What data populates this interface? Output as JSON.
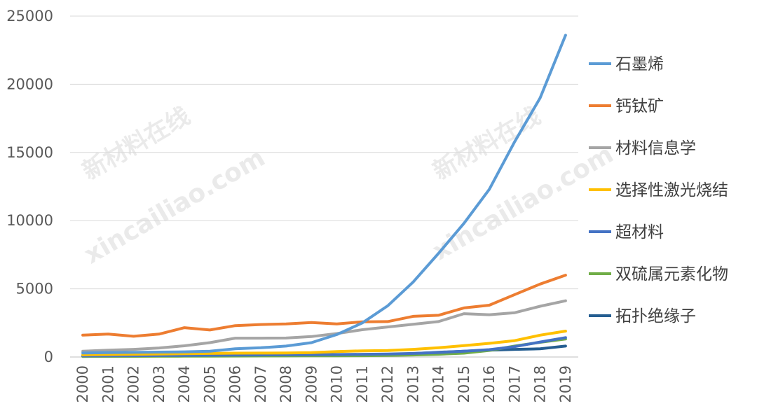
{
  "watermark": [
    "新材料在线",
    "xincailiao.com"
  ],
  "chart_data": {
    "type": "line",
    "x": [
      "2000",
      "2001",
      "2002",
      "2003",
      "2004",
      "2005",
      "2006",
      "2007",
      "2008",
      "2009",
      "2010",
      "2011",
      "2012",
      "2013",
      "2014",
      "2015",
      "2016",
      "2017",
      "2018",
      "2019"
    ],
    "ylim": [
      0,
      25000
    ],
    "yticks": [
      "0",
      "5000",
      "10000",
      "15000",
      "20000",
      "25000"
    ],
    "grid": true,
    "legend_position": "right",
    "series": [
      {
        "name": "石墨烯",
        "color": "#5b9bd5",
        "values": [
          300,
          320,
          340,
          360,
          380,
          420,
          600,
          680,
          800,
          1050,
          1650,
          2500,
          3750,
          5500,
          7600,
          9800,
          12300,
          15800,
          19000,
          23600
        ]
      },
      {
        "name": "钙钛矿",
        "color": "#ed7d31",
        "values": [
          1600,
          1680,
          1520,
          1680,
          2150,
          1980,
          2300,
          2380,
          2430,
          2530,
          2430,
          2580,
          2600,
          2980,
          3060,
          3600,
          3800,
          4580,
          5350,
          6000
        ]
      },
      {
        "name": "材料信息学",
        "color": "#a5a5a5",
        "values": [
          420,
          500,
          560,
          660,
          820,
          1050,
          1380,
          1380,
          1390,
          1500,
          1720,
          2000,
          2200,
          2400,
          2600,
          3180,
          3100,
          3250,
          3720,
          4120
        ]
      },
      {
        "name": "选择性激光烧结",
        "color": "#ffc000",
        "values": [
          160,
          180,
          200,
          220,
          240,
          260,
          280,
          290,
          300,
          320,
          400,
          450,
          470,
          560,
          680,
          830,
          1000,
          1200,
          1600,
          1900
        ]
      },
      {
        "name": "超材料",
        "color": "#4472c4",
        "values": [
          80,
          90,
          100,
          110,
          120,
          130,
          140,
          150,
          160,
          170,
          180,
          200,
          220,
          260,
          330,
          420,
          540,
          760,
          1100,
          1420
        ]
      },
      {
        "name": "双硫属元素化物",
        "color": "#70ad47",
        "values": [
          40,
          45,
          50,
          55,
          60,
          65,
          70,
          75,
          80,
          85,
          90,
          100,
          120,
          150,
          200,
          280,
          480,
          800,
          1080,
          1320
        ]
      },
      {
        "name": "拓扑绝缘子",
        "color": "#255e91",
        "values": [
          60,
          65,
          70,
          75,
          80,
          85,
          90,
          95,
          100,
          110,
          120,
          140,
          180,
          250,
          350,
          420,
          500,
          560,
          600,
          800
        ]
      }
    ]
  }
}
